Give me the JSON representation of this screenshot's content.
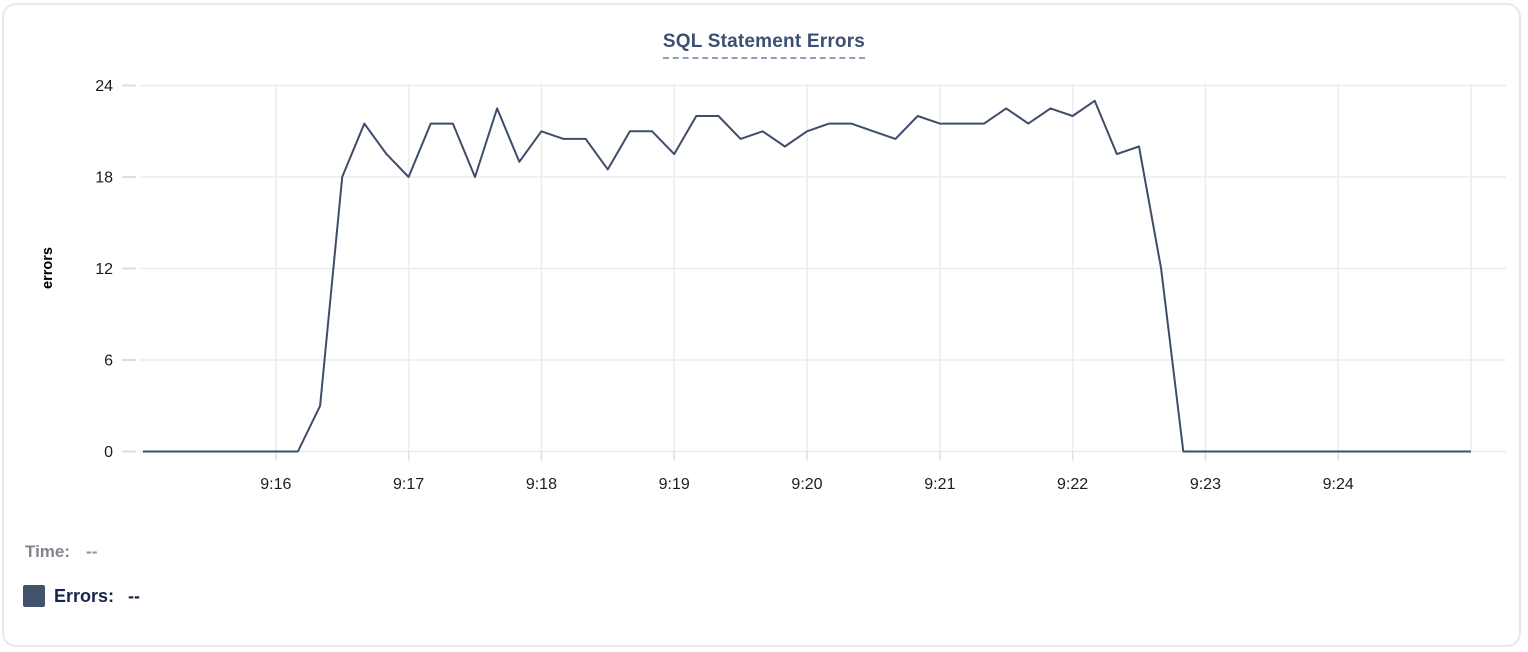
{
  "chart_data": {
    "type": "line",
    "title": "SQL Statement Errors",
    "ylabel": "errors",
    "series_name": "Errors",
    "grid": true,
    "legend_position": "bottom-left",
    "ylim": [
      0,
      24
    ],
    "y_ticks": [
      0,
      6,
      12,
      18,
      24
    ],
    "x_tick_labels": [
      "9:16",
      "9:17",
      "9:18",
      "9:19",
      "9:20",
      "9:21",
      "9:22",
      "9:23",
      "9:24"
    ],
    "line_color": "#3e4d6a",
    "grid_color": "#ececec",
    "times": [
      "9:15:00",
      "9:15:10",
      "9:15:20",
      "9:15:30",
      "9:15:40",
      "9:15:50",
      "9:16:00",
      "9:16:10",
      "9:16:20",
      "9:16:30",
      "9:16:40",
      "9:16:50",
      "9:17:00",
      "9:17:10",
      "9:17:20",
      "9:17:30",
      "9:17:40",
      "9:17:50",
      "9:18:00",
      "9:18:10",
      "9:18:20",
      "9:18:30",
      "9:18:40",
      "9:18:50",
      "9:19:00",
      "9:19:10",
      "9:19:20",
      "9:19:30",
      "9:19:40",
      "9:19:50",
      "9:20:00",
      "9:20:10",
      "9:20:20",
      "9:20:30",
      "9:20:40",
      "9:20:50",
      "9:21:00",
      "9:21:10",
      "9:21:20",
      "9:21:30",
      "9:21:40",
      "9:21:50",
      "9:22:00",
      "9:22:10",
      "9:22:20",
      "9:22:30",
      "9:22:40",
      "9:22:50",
      "9:23:00",
      "9:23:10",
      "9:23:20",
      "9:23:30",
      "9:23:40",
      "9:23:50",
      "9:24:00",
      "9:24:10",
      "9:24:20",
      "9:24:30",
      "9:24:40",
      "9:24:50",
      "9:25:00"
    ],
    "values": [
      0,
      0,
      0,
      0,
      0,
      0,
      0,
      0,
      3,
      18,
      21.5,
      19.5,
      18,
      21.5,
      21.5,
      18,
      22.5,
      19,
      21,
      20.5,
      20.5,
      18.5,
      21,
      21,
      19.5,
      22,
      22,
      20.5,
      21,
      20,
      21,
      21.5,
      21.5,
      21,
      20.5,
      22,
      21.5,
      21.5,
      21.5,
      22.5,
      21.5,
      22.5,
      22,
      23,
      19.5,
      20,
      12,
      0,
      0,
      0,
      0,
      0,
      0,
      0,
      0,
      0,
      0,
      0,
      0,
      0,
      0
    ]
  },
  "readout": {
    "time_label": "Time:",
    "time_value": "--",
    "errors_label": "Errors:",
    "errors_value": "--",
    "swatch_color": "#44536d"
  }
}
